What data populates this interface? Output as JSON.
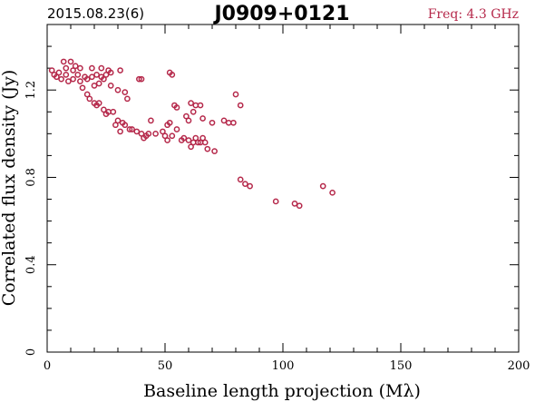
{
  "header": {
    "date": "2015.08.23(6)",
    "source": "J0909+0121",
    "frequency": "Freq: 4.3 GHz"
  },
  "colors": {
    "marker": "#b5284a",
    "freq_text": "#b5284a",
    "axes": "#000000"
  },
  "chart_data": {
    "type": "scatter",
    "title": "J0909+0121",
    "xlabel": "Baseline length projection (Mλ)",
    "ylabel": "Correlated flux density (Jy)",
    "xlim": [
      0,
      200
    ],
    "ylim": [
      0,
      1.5
    ],
    "xticks": [
      0,
      50,
      100,
      150,
      200
    ],
    "xtick_labels": [
      "0",
      "50",
      "100",
      "150",
      "200"
    ],
    "yticks": [
      0,
      0.4,
      0.8,
      1.2
    ],
    "ytick_labels": [
      "0",
      "0.4",
      "0.8",
      "1.2"
    ],
    "grid": false,
    "legend": "none",
    "marker": "open-circle",
    "points": [
      [
        2,
        1.29
      ],
      [
        3,
        1.27
      ],
      [
        4,
        1.26
      ],
      [
        5,
        1.28
      ],
      [
        6,
        1.25
      ],
      [
        7,
        1.33
      ],
      [
        8,
        1.3
      ],
      [
        8,
        1.27
      ],
      [
        9,
        1.24
      ],
      [
        10,
        1.33
      ],
      [
        11,
        1.29
      ],
      [
        11,
        1.25
      ],
      [
        12,
        1.31
      ],
      [
        13,
        1.27
      ],
      [
        14,
        1.3
      ],
      [
        14,
        1.24
      ],
      [
        15,
        1.21
      ],
      [
        16,
        1.26
      ],
      [
        17,
        1.25
      ],
      [
        17,
        1.18
      ],
      [
        18,
        1.16
      ],
      [
        19,
        1.3
      ],
      [
        19,
        1.26
      ],
      [
        20,
        1.22
      ],
      [
        20,
        1.14
      ],
      [
        21,
        1.27
      ],
      [
        21,
        1.13
      ],
      [
        22,
        1.23
      ],
      [
        22,
        1.14
      ],
      [
        23,
        1.3
      ],
      [
        23,
        1.26
      ],
      [
        24,
        1.11
      ],
      [
        24,
        1.25
      ],
      [
        25,
        1.27
      ],
      [
        25,
        1.09
      ],
      [
        26,
        1.29
      ],
      [
        26,
        1.1
      ],
      [
        27,
        1.28
      ],
      [
        27,
        1.22
      ],
      [
        28,
        1.1
      ],
      [
        29,
        1.04
      ],
      [
        30,
        1.2
      ],
      [
        30,
        1.06
      ],
      [
        31,
        1.29
      ],
      [
        31,
        1.01
      ],
      [
        32,
        1.05
      ],
      [
        33,
        1.19
      ],
      [
        33,
        1.04
      ],
      [
        34,
        1.16
      ],
      [
        35,
        1.02
      ],
      [
        36,
        1.02
      ],
      [
        38,
        1.01
      ],
      [
        39,
        1.25
      ],
      [
        40,
        1.25
      ],
      [
        40,
        1.0
      ],
      [
        41,
        0.98
      ],
      [
        42,
        0.99
      ],
      [
        43,
        1.0
      ],
      [
        44,
        1.06
      ],
      [
        46,
        1.0
      ],
      [
        49,
        1.01
      ],
      [
        50,
        0.99
      ],
      [
        51,
        1.04
      ],
      [
        51,
        0.97
      ],
      [
        52,
        1.28
      ],
      [
        52,
        1.05
      ],
      [
        53,
        1.27
      ],
      [
        53,
        0.99
      ],
      [
        54,
        1.13
      ],
      [
        55,
        1.12
      ],
      [
        55,
        1.02
      ],
      [
        57,
        0.97
      ],
      [
        58,
        0.98
      ],
      [
        59,
        1.08
      ],
      [
        60,
        1.06
      ],
      [
        60,
        0.97
      ],
      [
        61,
        1.14
      ],
      [
        61,
        0.94
      ],
      [
        62,
        0.96
      ],
      [
        62,
        1.1
      ],
      [
        63,
        1.13
      ],
      [
        63,
        0.98
      ],
      [
        64,
        0.96
      ],
      [
        65,
        1.13
      ],
      [
        65,
        0.96
      ],
      [
        66,
        1.07
      ],
      [
        66,
        0.98
      ],
      [
        67,
        0.96
      ],
      [
        68,
        0.93
      ],
      [
        70,
        1.05
      ],
      [
        71,
        0.92
      ],
      [
        75,
        1.06
      ],
      [
        77,
        1.05
      ],
      [
        79,
        1.05
      ],
      [
        80,
        1.18
      ],
      [
        82,
        1.13
      ],
      [
        82,
        0.79
      ],
      [
        84,
        0.77
      ],
      [
        86,
        0.76
      ],
      [
        97,
        0.69
      ],
      [
        105,
        0.68
      ],
      [
        107,
        0.67
      ],
      [
        117,
        0.76
      ],
      [
        121,
        0.73
      ]
    ]
  }
}
